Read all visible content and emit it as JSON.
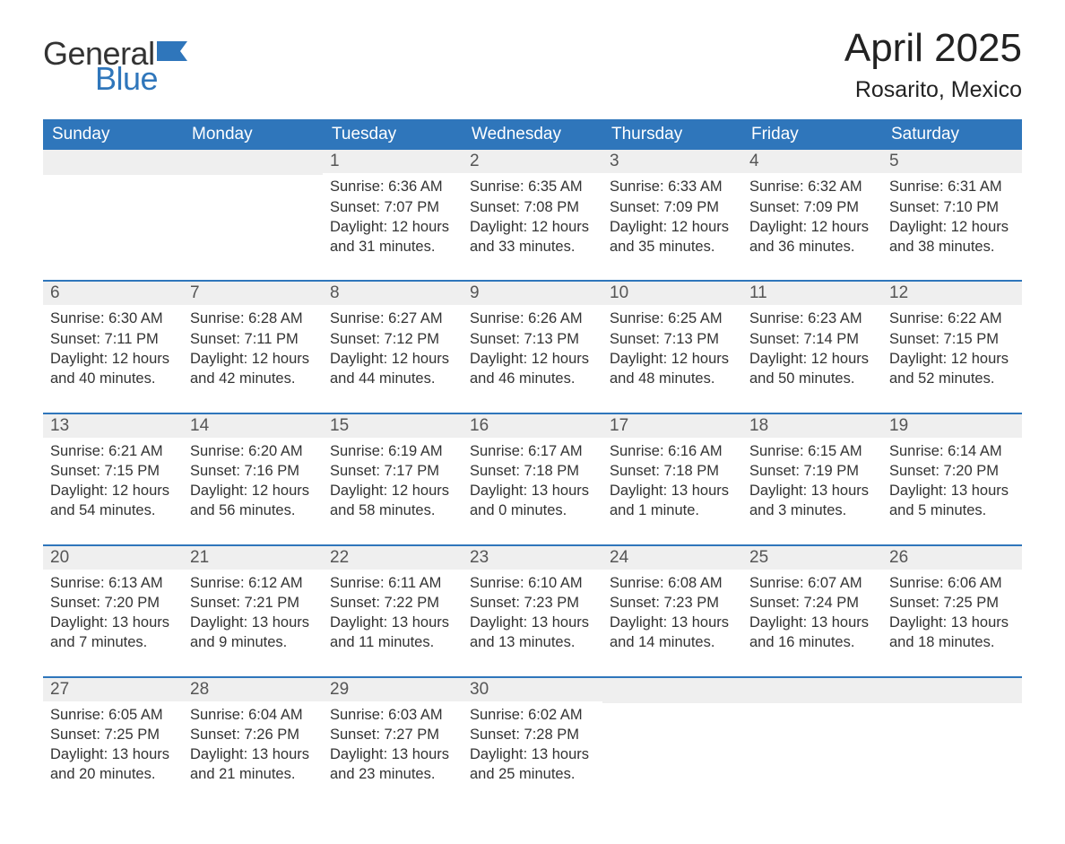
{
  "brand": {
    "word1": "General",
    "word2": "Blue",
    "flag_color": "#2f76bb",
    "text_dark": "#333333"
  },
  "header": {
    "month": "April 2025",
    "location": "Rosarito, Mexico"
  },
  "colors": {
    "header_bg": "#2f76bb",
    "header_text": "#ffffff",
    "daynum_bg": "#efefef",
    "week_border": "#2f76bb",
    "body_text": "#333333",
    "background": "#ffffff"
  },
  "layout": {
    "columns": 7,
    "rows": 5,
    "week_starts": "Sunday"
  },
  "weekdays": [
    "Sunday",
    "Monday",
    "Tuesday",
    "Wednesday",
    "Thursday",
    "Friday",
    "Saturday"
  ],
  "weeks": [
    [
      {
        "day": null
      },
      {
        "day": null
      },
      {
        "day": "1",
        "sunrise": "Sunrise: 6:36 AM",
        "sunset": "Sunset: 7:07 PM",
        "daylight": "Daylight: 12 hours and 31 minutes."
      },
      {
        "day": "2",
        "sunrise": "Sunrise: 6:35 AM",
        "sunset": "Sunset: 7:08 PM",
        "daylight": "Daylight: 12 hours and 33 minutes."
      },
      {
        "day": "3",
        "sunrise": "Sunrise: 6:33 AM",
        "sunset": "Sunset: 7:09 PM",
        "daylight": "Daylight: 12 hours and 35 minutes."
      },
      {
        "day": "4",
        "sunrise": "Sunrise: 6:32 AM",
        "sunset": "Sunset: 7:09 PM",
        "daylight": "Daylight: 12 hours and 36 minutes."
      },
      {
        "day": "5",
        "sunrise": "Sunrise: 6:31 AM",
        "sunset": "Sunset: 7:10 PM",
        "daylight": "Daylight: 12 hours and 38 minutes."
      }
    ],
    [
      {
        "day": "6",
        "sunrise": "Sunrise: 6:30 AM",
        "sunset": "Sunset: 7:11 PM",
        "daylight": "Daylight: 12 hours and 40 minutes."
      },
      {
        "day": "7",
        "sunrise": "Sunrise: 6:28 AM",
        "sunset": "Sunset: 7:11 PM",
        "daylight": "Daylight: 12 hours and 42 minutes."
      },
      {
        "day": "8",
        "sunrise": "Sunrise: 6:27 AM",
        "sunset": "Sunset: 7:12 PM",
        "daylight": "Daylight: 12 hours and 44 minutes."
      },
      {
        "day": "9",
        "sunrise": "Sunrise: 6:26 AM",
        "sunset": "Sunset: 7:13 PM",
        "daylight": "Daylight: 12 hours and 46 minutes."
      },
      {
        "day": "10",
        "sunrise": "Sunrise: 6:25 AM",
        "sunset": "Sunset: 7:13 PM",
        "daylight": "Daylight: 12 hours and 48 minutes."
      },
      {
        "day": "11",
        "sunrise": "Sunrise: 6:23 AM",
        "sunset": "Sunset: 7:14 PM",
        "daylight": "Daylight: 12 hours and 50 minutes."
      },
      {
        "day": "12",
        "sunrise": "Sunrise: 6:22 AM",
        "sunset": "Sunset: 7:15 PM",
        "daylight": "Daylight: 12 hours and 52 minutes."
      }
    ],
    [
      {
        "day": "13",
        "sunrise": "Sunrise: 6:21 AM",
        "sunset": "Sunset: 7:15 PM",
        "daylight": "Daylight: 12 hours and 54 minutes."
      },
      {
        "day": "14",
        "sunrise": "Sunrise: 6:20 AM",
        "sunset": "Sunset: 7:16 PM",
        "daylight": "Daylight: 12 hours and 56 minutes."
      },
      {
        "day": "15",
        "sunrise": "Sunrise: 6:19 AM",
        "sunset": "Sunset: 7:17 PM",
        "daylight": "Daylight: 12 hours and 58 minutes."
      },
      {
        "day": "16",
        "sunrise": "Sunrise: 6:17 AM",
        "sunset": "Sunset: 7:18 PM",
        "daylight": "Daylight: 13 hours and 0 minutes."
      },
      {
        "day": "17",
        "sunrise": "Sunrise: 6:16 AM",
        "sunset": "Sunset: 7:18 PM",
        "daylight": "Daylight: 13 hours and 1 minute."
      },
      {
        "day": "18",
        "sunrise": "Sunrise: 6:15 AM",
        "sunset": "Sunset: 7:19 PM",
        "daylight": "Daylight: 13 hours and 3 minutes."
      },
      {
        "day": "19",
        "sunrise": "Sunrise: 6:14 AM",
        "sunset": "Sunset: 7:20 PM",
        "daylight": "Daylight: 13 hours and 5 minutes."
      }
    ],
    [
      {
        "day": "20",
        "sunrise": "Sunrise: 6:13 AM",
        "sunset": "Sunset: 7:20 PM",
        "daylight": "Daylight: 13 hours and 7 minutes."
      },
      {
        "day": "21",
        "sunrise": "Sunrise: 6:12 AM",
        "sunset": "Sunset: 7:21 PM",
        "daylight": "Daylight: 13 hours and 9 minutes."
      },
      {
        "day": "22",
        "sunrise": "Sunrise: 6:11 AM",
        "sunset": "Sunset: 7:22 PM",
        "daylight": "Daylight: 13 hours and 11 minutes."
      },
      {
        "day": "23",
        "sunrise": "Sunrise: 6:10 AM",
        "sunset": "Sunset: 7:23 PM",
        "daylight": "Daylight: 13 hours and 13 minutes."
      },
      {
        "day": "24",
        "sunrise": "Sunrise: 6:08 AM",
        "sunset": "Sunset: 7:23 PM",
        "daylight": "Daylight: 13 hours and 14 minutes."
      },
      {
        "day": "25",
        "sunrise": "Sunrise: 6:07 AM",
        "sunset": "Sunset: 7:24 PM",
        "daylight": "Daylight: 13 hours and 16 minutes."
      },
      {
        "day": "26",
        "sunrise": "Sunrise: 6:06 AM",
        "sunset": "Sunset: 7:25 PM",
        "daylight": "Daylight: 13 hours and 18 minutes."
      }
    ],
    [
      {
        "day": "27",
        "sunrise": "Sunrise: 6:05 AM",
        "sunset": "Sunset: 7:25 PM",
        "daylight": "Daylight: 13 hours and 20 minutes."
      },
      {
        "day": "28",
        "sunrise": "Sunrise: 6:04 AM",
        "sunset": "Sunset: 7:26 PM",
        "daylight": "Daylight: 13 hours and 21 minutes."
      },
      {
        "day": "29",
        "sunrise": "Sunrise: 6:03 AM",
        "sunset": "Sunset: 7:27 PM",
        "daylight": "Daylight: 13 hours and 23 minutes."
      },
      {
        "day": "30",
        "sunrise": "Sunrise: 6:02 AM",
        "sunset": "Sunset: 7:28 PM",
        "daylight": "Daylight: 13 hours and 25 minutes."
      },
      {
        "day": null
      },
      {
        "day": null
      },
      {
        "day": null
      }
    ]
  ]
}
